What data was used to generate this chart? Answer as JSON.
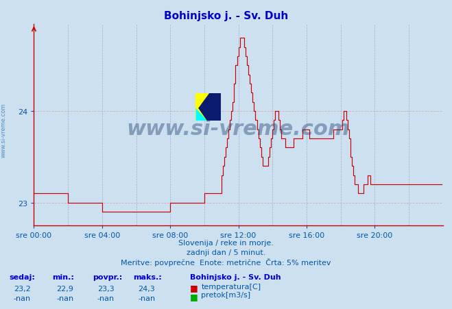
{
  "title": "Bohinjsko j. - Sv. Duh",
  "title_color": "#0000cc",
  "bg_color": "#cce0f0",
  "plot_bg_color": "#cce0f0",
  "line_color": "#cc0000",
  "grid_color_h": "#ddaaaa",
  "grid_color_v": "#aaaacc",
  "axis_color": "#0055aa",
  "text_color": "#0055aa",
  "ylabel_min": 22.75,
  "ylabel_max": 24.95,
  "yticks": [
    23,
    24
  ],
  "xtick_labels": [
    "sre 00:00",
    "sre 04:00",
    "sre 08:00",
    "sre 12:00",
    "sre 16:00",
    "sre 20:00"
  ],
  "footer_line1": "Slovenija / reke in morje.",
  "footer_line2": "zadnji dan / 5 minut.",
  "footer_line3": "Meritve: povprečne  Enote: metrične  Črta: 5% meritev",
  "legend_title": "Bohinjsko j. - Sv. Duh",
  "stats_headers": [
    "sedaj:",
    "min.:",
    "povpr.:",
    "maks.:"
  ],
  "stats_temp": [
    "23,2",
    "22,9",
    "23,3",
    "24,3"
  ],
  "stats_pretok": [
    "-nan",
    "-nan",
    "-nan",
    "-nan"
  ],
  "watermark": "www.si-vreme.com",
  "watermark_color": "#1a3a6a",
  "temp_data": [
    23.1,
    23.1,
    23.1,
    23.1,
    23.1,
    23.1,
    23.1,
    23.1,
    23.1,
    23.1,
    23.1,
    23.1,
    23.1,
    23.1,
    23.1,
    23.1,
    23.1,
    23.1,
    23.1,
    23.1,
    23.1,
    23.1,
    23.1,
    23.1,
    23.0,
    23.0,
    23.0,
    23.0,
    23.0,
    23.0,
    23.0,
    23.0,
    23.0,
    23.0,
    23.0,
    23.0,
    23.0,
    23.0,
    23.0,
    23.0,
    23.0,
    23.0,
    23.0,
    23.0,
    23.0,
    23.0,
    23.0,
    23.0,
    22.9,
    22.9,
    22.9,
    22.9,
    22.9,
    22.9,
    22.9,
    22.9,
    22.9,
    22.9,
    22.9,
    22.9,
    22.9,
    22.9,
    22.9,
    22.9,
    22.9,
    22.9,
    22.9,
    22.9,
    22.9,
    22.9,
    22.9,
    22.9,
    22.9,
    22.9,
    22.9,
    22.9,
    22.9,
    22.9,
    22.9,
    22.9,
    22.9,
    22.9,
    22.9,
    22.9,
    22.9,
    22.9,
    22.9,
    22.9,
    22.9,
    22.9,
    22.9,
    22.9,
    22.9,
    22.9,
    22.9,
    22.9,
    23.0,
    23.0,
    23.0,
    23.0,
    23.0,
    23.0,
    23.0,
    23.0,
    23.0,
    23.0,
    23.0,
    23.0,
    23.0,
    23.0,
    23.0,
    23.0,
    23.0,
    23.0,
    23.0,
    23.0,
    23.0,
    23.0,
    23.0,
    23.0,
    23.1,
    23.1,
    23.1,
    23.1,
    23.1,
    23.1,
    23.1,
    23.1,
    23.1,
    23.1,
    23.1,
    23.1,
    23.3,
    23.4,
    23.5,
    23.6,
    23.7,
    23.8,
    23.9,
    24.0,
    24.1,
    24.3,
    24.5,
    24.6,
    24.7,
    24.8,
    24.8,
    24.8,
    24.7,
    24.6,
    24.5,
    24.4,
    24.3,
    24.2,
    24.1,
    24.0,
    23.9,
    23.8,
    23.7,
    23.6,
    23.5,
    23.4,
    23.4,
    23.4,
    23.4,
    23.5,
    23.6,
    23.7,
    23.8,
    23.9,
    24.0,
    24.0,
    23.9,
    23.8,
    23.7,
    23.7,
    23.7,
    23.6,
    23.6,
    23.6,
    23.6,
    23.6,
    23.6,
    23.7,
    23.7,
    23.7,
    23.7,
    23.7,
    23.7,
    23.8,
    23.8,
    23.8,
    23.8,
    23.8,
    23.7,
    23.7,
    23.7,
    23.7,
    23.7,
    23.7,
    23.7,
    23.7,
    23.7,
    23.7,
    23.7,
    23.7,
    23.7,
    23.7,
    23.7,
    23.7,
    23.7,
    23.8,
    23.8,
    23.8,
    23.8,
    23.8,
    23.8,
    23.9,
    24.0,
    24.0,
    23.9,
    23.8,
    23.7,
    23.5,
    23.4,
    23.3,
    23.2,
    23.2,
    23.1,
    23.1,
    23.1,
    23.1,
    23.2,
    23.2,
    23.2,
    23.3,
    23.3,
    23.2,
    23.2,
    23.2,
    23.2,
    23.2,
    23.2,
    23.2,
    23.2,
    23.2,
    23.2,
    23.2,
    23.2,
    23.2,
    23.2,
    23.2,
    23.2,
    23.2,
    23.2,
    23.2,
    23.2,
    23.2,
    23.2,
    23.2,
    23.2,
    23.2,
    23.2,
    23.2,
    23.2,
    23.2,
    23.2,
    23.2,
    23.2,
    23.2,
    23.2,
    23.2,
    23.2,
    23.2,
    23.2,
    23.2,
    23.2,
    23.2,
    23.2,
    23.2,
    23.2,
    23.2,
    23.2,
    23.2,
    23.2,
    23.2,
    23.2,
    23.2
  ]
}
